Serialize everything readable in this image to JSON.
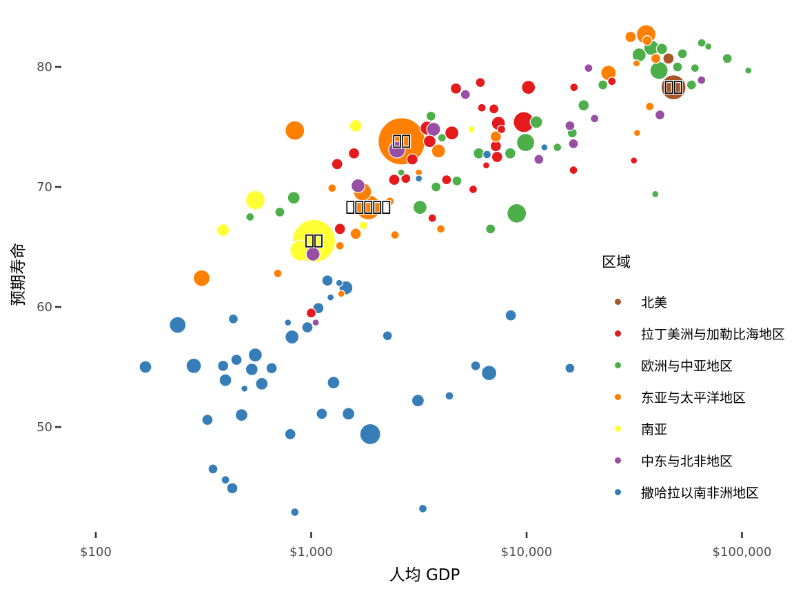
{
  "chart_data": {
    "type": "scatter",
    "subtype": "bubble",
    "title": "",
    "xlabel": "人均 GDP",
    "ylabel": "预期寿命",
    "x_scale": "log10",
    "x_range": [
      75,
      130000
    ],
    "y_range": [
      42,
      84
    ],
    "grid": false,
    "x_ticks": [
      {
        "v": 100,
        "label": "$100"
      },
      {
        "v": 1000,
        "label": "$1,000"
      },
      {
        "v": 10000,
        "label": "$10,000"
      },
      {
        "v": 100000,
        "label": "$100,000"
      }
    ],
    "y_ticks": [
      {
        "v": 50,
        "label": "50"
      },
      {
        "v": 60,
        "label": "60"
      },
      {
        "v": 70,
        "label": "70"
      },
      {
        "v": 80,
        "label": "80"
      }
    ],
    "colors": {
      "background": "#ffffff",
      "axis_text": "#4d4d4d",
      "axis_title": "#000000",
      "tick": "#333333",
      "point_stroke": "#ffffff",
      "label_box_stroke": "#000000",
      "label_box_halo": "#ffffff"
    },
    "point_keys": {
      "g": "gdp_per_capita_usd",
      "l": "life_expectancy_years",
      "r": "bubble_radius_px",
      "boxes": "country_label_rendered_as_missing_glyph_box_count"
    },
    "note": "country labels on large bubbles are rendered as missing-glyph (tofu) boxes in the source image: 2 boxes on the brown bubble, 2 on the large orange bubble, 5 on the medium orange bubble, 2 on the large yellow bubble",
    "legend": {
      "title": "区域",
      "position": "right-middle",
      "entries": [
        {
          "label": "北美",
          "color": "#A65628"
        },
        {
          "label": "拉丁美洲与加勒比海地区",
          "color": "#E41A1C"
        },
        {
          "label": "欧洲与中亚地区",
          "color": "#4DAF4A"
        },
        {
          "label": "东亚与太平洋地区",
          "color": "#FF7F00"
        },
        {
          "label": "南亚",
          "color": "#FFFF33"
        },
        {
          "label": "中东与北非地区",
          "color": "#984EA3"
        },
        {
          "label": "撒哈拉以南非洲地区",
          "color": "#377EB8"
        }
      ]
    },
    "series": [
      {
        "name": "北美",
        "color": "#A65628",
        "points": [
          {
            "g": 48100,
            "l": 78.3,
            "r": 18,
            "boxes": 2
          },
          {
            "g": 45600,
            "l": 80.7,
            "r": 8
          }
        ]
      },
      {
        "name": "拉丁美洲与加勒比海地区",
        "color": "#E41A1C",
        "points": [
          {
            "g": 10200,
            "l": 78.3,
            "r": 10
          },
          {
            "g": 16600,
            "l": 78.3,
            "r": 6
          },
          {
            "g": 24900,
            "l": 78.8,
            "r": 6
          },
          {
            "g": 31500,
            "l": 72.2,
            "r": 5
          },
          {
            "g": 16500,
            "l": 71.4,
            "r": 6
          },
          {
            "g": 9700,
            "l": 75.4,
            "r": 15
          },
          {
            "g": 7400,
            "l": 75.3,
            "r": 10
          },
          {
            "g": 7650,
            "l": 74.8,
            "r": 6
          },
          {
            "g": 7050,
            "l": 76.5,
            "r": 7
          },
          {
            "g": 6200,
            "l": 76.6,
            "r": 6
          },
          {
            "g": 6100,
            "l": 78.7,
            "r": 7
          },
          {
            "g": 4700,
            "l": 78.2,
            "r": 8
          },
          {
            "g": 7200,
            "l": 73.4,
            "r": 8
          },
          {
            "g": 7300,
            "l": 72.5,
            "r": 8
          },
          {
            "g": 6500,
            "l": 71.8,
            "r": 5
          },
          {
            "g": 3450,
            "l": 74.9,
            "r": 10
          },
          {
            "g": 4500,
            "l": 74.5,
            "r": 10
          },
          {
            "g": 3550,
            "l": 73.8,
            "r": 9
          },
          {
            "g": 2950,
            "l": 72.3,
            "r": 8
          },
          {
            "g": 2430,
            "l": 70.6,
            "r": 8
          },
          {
            "g": 2750,
            "l": 70.7,
            "r": 7
          },
          {
            "g": 4250,
            "l": 70.6,
            "r": 7
          },
          {
            "g": 5650,
            "l": 69.8,
            "r": 6
          },
          {
            "g": 3650,
            "l": 67.4,
            "r": 6
          },
          {
            "g": 1580,
            "l": 72.8,
            "r": 8
          },
          {
            "g": 1320,
            "l": 71.9,
            "r": 8
          },
          {
            "g": 1360,
            "l": 66.5,
            "r": 8
          },
          {
            "g": 1000,
            "l": 59.5,
            "r": 7
          }
        ]
      },
      {
        "name": "欧洲与中亚地区",
        "color": "#4DAF4A",
        "points": [
          {
            "g": 38000,
            "l": 81.6,
            "r": 11
          },
          {
            "g": 42500,
            "l": 81.5,
            "r": 8
          },
          {
            "g": 33300,
            "l": 81.0,
            "r": 10
          },
          {
            "g": 52900,
            "l": 81.1,
            "r": 7
          },
          {
            "g": 65000,
            "l": 82.0,
            "r": 6
          },
          {
            "g": 69800,
            "l": 81.7,
            "r": 5
          },
          {
            "g": 41200,
            "l": 79.7,
            "r": 13
          },
          {
            "g": 50200,
            "l": 80.0,
            "r": 7
          },
          {
            "g": 60500,
            "l": 79.9,
            "r": 6
          },
          {
            "g": 85500,
            "l": 80.7,
            "r": 7
          },
          {
            "g": 107000,
            "l": 79.7,
            "r": 5
          },
          {
            "g": 58300,
            "l": 78.5,
            "r": 7
          },
          {
            "g": 22600,
            "l": 78.5,
            "r": 7
          },
          {
            "g": 18400,
            "l": 76.8,
            "r": 8
          },
          {
            "g": 11100,
            "l": 75.4,
            "r": 9
          },
          {
            "g": 16300,
            "l": 74.5,
            "r": 7
          },
          {
            "g": 13900,
            "l": 73.3,
            "r": 6
          },
          {
            "g": 9900,
            "l": 73.7,
            "r": 13
          },
          {
            "g": 8400,
            "l": 72.8,
            "r": 8
          },
          {
            "g": 6000,
            "l": 72.8,
            "r": 8
          },
          {
            "g": 3600,
            "l": 75.9,
            "r": 7
          },
          {
            "g": 4050,
            "l": 74.1,
            "r": 6
          },
          {
            "g": 4750,
            "l": 70.5,
            "r": 7
          },
          {
            "g": 3800,
            "l": 70.0,
            "r": 7
          },
          {
            "g": 2620,
            "l": 71.2,
            "r": 5
          },
          {
            "g": 3200,
            "l": 68.3,
            "r": 10
          },
          {
            "g": 6800,
            "l": 66.5,
            "r": 7
          },
          {
            "g": 9000,
            "l": 67.8,
            "r": 14
          },
          {
            "g": 39600,
            "l": 69.4,
            "r": 5
          },
          {
            "g": 830,
            "l": 69.1,
            "r": 9
          },
          {
            "g": 715,
            "l": 67.9,
            "r": 7
          },
          {
            "g": 520,
            "l": 67.5,
            "r": 6
          }
        ]
      },
      {
        "name": "东亚与太平洋地区",
        "color": "#FF7F00",
        "points": [
          {
            "g": 35900,
            "l": 82.7,
            "r": 14
          },
          {
            "g": 30400,
            "l": 82.5,
            "r": 8
          },
          {
            "g": 36300,
            "l": 82.2,
            "r": 7
          },
          {
            "g": 39800,
            "l": 80.7,
            "r": 7
          },
          {
            "g": 32400,
            "l": 80.3,
            "r": 5
          },
          {
            "g": 24000,
            "l": 79.5,
            "r": 11
          },
          {
            "g": 37300,
            "l": 76.7,
            "r": 6
          },
          {
            "g": 32600,
            "l": 74.5,
            "r": 5
          },
          {
            "g": 7200,
            "l": 74.2,
            "r": 8
          },
          {
            "g": 3900,
            "l": 73.0,
            "r": 10
          },
          {
            "g": 2630,
            "l": 73.8,
            "r": 34,
            "boxes": 2
          },
          {
            "g": 3160,
            "l": 71.2,
            "r": 5
          },
          {
            "g": 2320,
            "l": 68.8,
            "r": 6
          },
          {
            "g": 1840,
            "l": 68.3,
            "r": 18,
            "boxes": 5
          },
          {
            "g": 1730,
            "l": 69.6,
            "r": 13
          },
          {
            "g": 4000,
            "l": 66.5,
            "r": 6
          },
          {
            "g": 2450,
            "l": 66.0,
            "r": 6
          },
          {
            "g": 1610,
            "l": 66.1,
            "r": 8
          },
          {
            "g": 1360,
            "l": 65.1,
            "r": 6
          },
          {
            "g": 1250,
            "l": 69.9,
            "r": 6
          },
          {
            "g": 840,
            "l": 74.7,
            "r": 14
          },
          {
            "g": 310,
            "l": 62.4,
            "r": 12
          },
          {
            "g": 700,
            "l": 62.8,
            "r": 6
          },
          {
            "g": 1380,
            "l": 61.1,
            "r": 5
          }
        ]
      },
      {
        "name": "南亚",
        "color": "#FFFF33",
        "points": [
          {
            "g": 1030,
            "l": 65.5,
            "r": 31,
            "boxes": 2
          },
          {
            "g": 890,
            "l": 64.7,
            "r": 15
          },
          {
            "g": 550,
            "l": 68.9,
            "r": 14
          },
          {
            "g": 390,
            "l": 66.4,
            "r": 9
          },
          {
            "g": 1610,
            "l": 75.1,
            "r": 9
          },
          {
            "g": 1750,
            "l": 66.8,
            "r": 6
          },
          {
            "g": 5550,
            "l": 74.8,
            "r": 5
          }
        ]
      },
      {
        "name": "中东与北非地区",
        "color": "#984EA3",
        "points": [
          {
            "g": 64900,
            "l": 78.9,
            "r": 6
          },
          {
            "g": 19400,
            "l": 79.9,
            "r": 6
          },
          {
            "g": 41600,
            "l": 76.0,
            "r": 7
          },
          {
            "g": 20700,
            "l": 75.7,
            "r": 6
          },
          {
            "g": 15900,
            "l": 75.1,
            "r": 7
          },
          {
            "g": 16500,
            "l": 73.6,
            "r": 7
          },
          {
            "g": 11400,
            "l": 72.3,
            "r": 7
          },
          {
            "g": 5200,
            "l": 77.7,
            "r": 7
          },
          {
            "g": 3700,
            "l": 74.8,
            "r": 10
          },
          {
            "g": 2500,
            "l": 73.1,
            "r": 12
          },
          {
            "g": 1650,
            "l": 70.1,
            "r": 10
          },
          {
            "g": 1020,
            "l": 64.4,
            "r": 10
          },
          {
            "g": 1050,
            "l": 58.7,
            "r": 5
          }
        ]
      },
      {
        "name": "撒哈拉以南非洲地区",
        "color": "#377EB8",
        "points": [
          {
            "g": 12100,
            "l": 73.3,
            "r": 5
          },
          {
            "g": 6550,
            "l": 72.7,
            "r": 6
          },
          {
            "g": 3160,
            "l": 70.7,
            "r": 5
          },
          {
            "g": 8450,
            "l": 59.3,
            "r": 8
          },
          {
            "g": 15900,
            "l": 54.9,
            "r": 7
          },
          {
            "g": 5800,
            "l": 55.1,
            "r": 7
          },
          {
            "g": 6700,
            "l": 54.5,
            "r": 11
          },
          {
            "g": 4380,
            "l": 52.6,
            "r": 6
          },
          {
            "g": 3130,
            "l": 52.2,
            "r": 9
          },
          {
            "g": 3300,
            "l": 43.2,
            "r": 6
          },
          {
            "g": 1880,
            "l": 49.4,
            "r": 15
          },
          {
            "g": 1490,
            "l": 51.1,
            "r": 9
          },
          {
            "g": 1120,
            "l": 51.1,
            "r": 8
          },
          {
            "g": 1270,
            "l": 53.7,
            "r": 9
          },
          {
            "g": 2260,
            "l": 57.6,
            "r": 7
          },
          {
            "g": 1450,
            "l": 61.6,
            "r": 10
          },
          {
            "g": 1350,
            "l": 62.0,
            "r": 5
          },
          {
            "g": 1190,
            "l": 62.2,
            "r": 8
          },
          {
            "g": 1230,
            "l": 60.8,
            "r": 5
          },
          {
            "g": 1080,
            "l": 59.9,
            "r": 8
          },
          {
            "g": 960,
            "l": 58.3,
            "r": 8
          },
          {
            "g": 815,
            "l": 57.5,
            "r": 10
          },
          {
            "g": 780,
            "l": 58.7,
            "r": 5
          },
          {
            "g": 435,
            "l": 59.0,
            "r": 7
          },
          {
            "g": 240,
            "l": 58.5,
            "r": 12
          },
          {
            "g": 170,
            "l": 55.0,
            "r": 9
          },
          {
            "g": 285,
            "l": 55.1,
            "r": 11
          },
          {
            "g": 390,
            "l": 55.1,
            "r": 8
          },
          {
            "g": 450,
            "l": 55.6,
            "r": 8
          },
          {
            "g": 550,
            "l": 56.0,
            "r": 10
          },
          {
            "g": 530,
            "l": 54.8,
            "r": 9
          },
          {
            "g": 655,
            "l": 54.9,
            "r": 8
          },
          {
            "g": 400,
            "l": 53.9,
            "r": 9
          },
          {
            "g": 490,
            "l": 53.2,
            "r": 5
          },
          {
            "g": 590,
            "l": 53.6,
            "r": 9
          },
          {
            "g": 330,
            "l": 50.6,
            "r": 8
          },
          {
            "g": 475,
            "l": 51.0,
            "r": 9
          },
          {
            "g": 800,
            "l": 49.4,
            "r": 8
          },
          {
            "g": 350,
            "l": 46.5,
            "r": 7
          },
          {
            "g": 400,
            "l": 45.6,
            "r": 6
          },
          {
            "g": 430,
            "l": 44.9,
            "r": 8
          },
          {
            "g": 840,
            "l": 42.9,
            "r": 6
          }
        ]
      }
    ]
  }
}
